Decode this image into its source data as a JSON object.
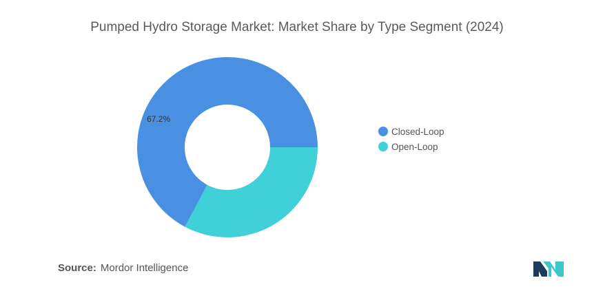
{
  "chart_data": {
    "type": "pie",
    "title": "Pumped Hydro Storage Market: Market Share by Type Segment (2024)",
    "categories": [
      "Closed-Loop",
      "Open-Loop"
    ],
    "values": [
      67.2,
      32.8
    ],
    "data_labels": [
      "67.2%",
      ""
    ],
    "colors": [
      "#4a90e2",
      "#40d0d8"
    ],
    "donut": true,
    "legend_position": "right"
  },
  "source": {
    "label": "Source:",
    "text": "Mordor Intelligence"
  },
  "logo": {
    "icon": "mordor-intelligence-logo",
    "colors": [
      "#1f3a5f",
      "#3cc8c8"
    ]
  }
}
